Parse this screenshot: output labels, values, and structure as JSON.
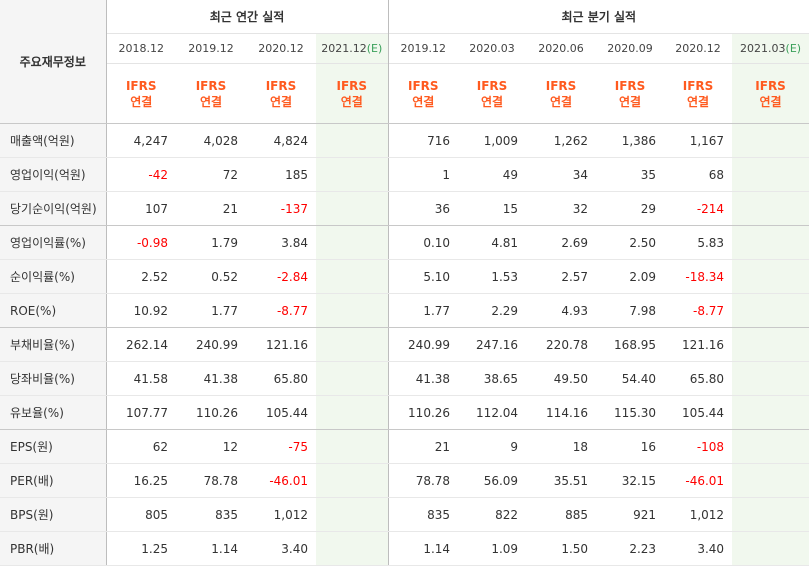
{
  "header": {
    "row_label": "주요재무정보",
    "annual_title": "최근 연간 실적",
    "quarter_title": "최근 분기 실적",
    "annual_periods": [
      {
        "label": "2018.12",
        "est": ""
      },
      {
        "label": "2019.12",
        "est": ""
      },
      {
        "label": "2020.12",
        "est": ""
      },
      {
        "label": "2021.12",
        "est": "(E)"
      }
    ],
    "quarter_periods": [
      {
        "label": "2019.12",
        "est": ""
      },
      {
        "label": "2020.03",
        "est": ""
      },
      {
        "label": "2020.06",
        "est": ""
      },
      {
        "label": "2020.09",
        "est": ""
      },
      {
        "label": "2020.12",
        "est": ""
      },
      {
        "label": "2021.03",
        "est": "(E)"
      }
    ],
    "standard_top": "IFRS",
    "standard_bottom": "연결"
  },
  "colors": {
    "negative": "#ff0000",
    "estimate_bg": "#f1f8ee",
    "ifrs_text": "#ff5a1f"
  },
  "rows": [
    {
      "label": "매출액(억원)",
      "annual": [
        "4,247",
        "4,028",
        "4,824",
        ""
      ],
      "quarter": [
        "716",
        "1,009",
        "1,262",
        "1,386",
        "1,167",
        ""
      ]
    },
    {
      "label": "영업이익(억원)",
      "annual": [
        "-42",
        "72",
        "185",
        ""
      ],
      "quarter": [
        "1",
        "49",
        "34",
        "35",
        "68",
        ""
      ]
    },
    {
      "label": "당기순이익(억원)",
      "annual": [
        "107",
        "21",
        "-137",
        ""
      ],
      "quarter": [
        "36",
        "15",
        "32",
        "29",
        "-214",
        ""
      ]
    },
    {
      "label": "영업이익률(%)",
      "annual": [
        "-0.98",
        "1.79",
        "3.84",
        ""
      ],
      "quarter": [
        "0.10",
        "4.81",
        "2.69",
        "2.50",
        "5.83",
        ""
      ]
    },
    {
      "label": "순이익률(%)",
      "annual": [
        "2.52",
        "0.52",
        "-2.84",
        ""
      ],
      "quarter": [
        "5.10",
        "1.53",
        "2.57",
        "2.09",
        "-18.34",
        ""
      ]
    },
    {
      "label": "ROE(%)",
      "annual": [
        "10.92",
        "1.77",
        "-8.77",
        ""
      ],
      "quarter": [
        "1.77",
        "2.29",
        "4.93",
        "7.98",
        "-8.77",
        ""
      ]
    },
    {
      "label": "부채비율(%)",
      "annual": [
        "262.14",
        "240.99",
        "121.16",
        ""
      ],
      "quarter": [
        "240.99",
        "247.16",
        "220.78",
        "168.95",
        "121.16",
        ""
      ]
    },
    {
      "label": "당좌비율(%)",
      "annual": [
        "41.58",
        "41.38",
        "65.80",
        ""
      ],
      "quarter": [
        "41.38",
        "38.65",
        "49.50",
        "54.40",
        "65.80",
        ""
      ]
    },
    {
      "label": "유보율(%)",
      "annual": [
        "107.77",
        "110.26",
        "105.44",
        ""
      ],
      "quarter": [
        "110.26",
        "112.04",
        "114.16",
        "115.30",
        "105.44",
        ""
      ]
    },
    {
      "label": "EPS(원)",
      "annual": [
        "62",
        "12",
        "-75",
        ""
      ],
      "quarter": [
        "21",
        "9",
        "18",
        "16",
        "-108",
        ""
      ]
    },
    {
      "label": "PER(배)",
      "annual": [
        "16.25",
        "78.78",
        "-46.01",
        ""
      ],
      "quarter": [
        "78.78",
        "56.09",
        "35.51",
        "32.15",
        "-46.01",
        ""
      ]
    },
    {
      "label": "BPS(원)",
      "annual": [
        "805",
        "835",
        "1,012",
        ""
      ],
      "quarter": [
        "835",
        "822",
        "885",
        "921",
        "1,012",
        ""
      ]
    },
    {
      "label": "PBR(배)",
      "annual": [
        "1.25",
        "1.14",
        "3.40",
        ""
      ],
      "quarter": [
        "1.14",
        "1.09",
        "1.50",
        "2.23",
        "3.40",
        ""
      ]
    }
  ]
}
